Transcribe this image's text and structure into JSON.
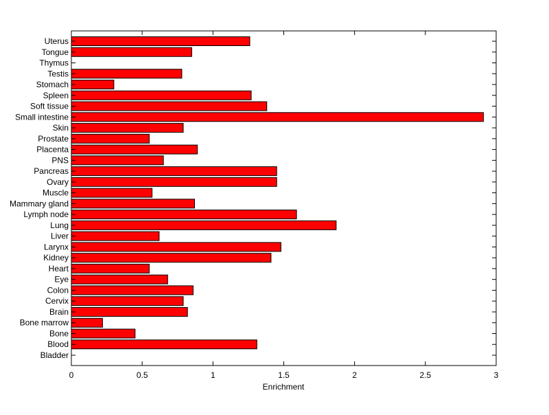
{
  "chart_data": {
    "type": "bar",
    "orientation": "horizontal",
    "title": "",
    "xlabel": "Enrichment",
    "ylabel": "",
    "xlim": [
      0,
      3
    ],
    "xticks": [
      "0",
      "0.5",
      "1",
      "1.5",
      "2",
      "2.5",
      "3"
    ],
    "xtick_values": [
      0,
      0.5,
      1,
      1.5,
      2,
      2.5,
      3
    ],
    "grid": false,
    "bar_color": "#ff0000",
    "categories": [
      "Bladder",
      "Blood",
      "Bone",
      "Bone marrow",
      "Brain",
      "Cervix",
      "Colon",
      "Eye",
      "Heart",
      "Kidney",
      "Larynx",
      "Liver",
      "Lung",
      "Lymph node",
      "Mammary gland",
      "Muscle",
      "Ovary",
      "Pancreas",
      "PNS",
      "Placenta",
      "Prostate",
      "Skin",
      "Small intestine",
      "Soft tissue",
      "Spleen",
      "Stomach",
      "Testis",
      "Thymus",
      "Tongue",
      "Uterus"
    ],
    "values": [
      0,
      1.31,
      0.45,
      0.22,
      0.82,
      0.79,
      0.86,
      0.68,
      0.55,
      1.41,
      1.48,
      0.62,
      1.87,
      1.59,
      0.87,
      0.57,
      1.45,
      1.45,
      0.65,
      0.89,
      0.55,
      0.79,
      2.91,
      1.38,
      1.27,
      0.3,
      0.78,
      0,
      0.85,
      1.26
    ]
  }
}
